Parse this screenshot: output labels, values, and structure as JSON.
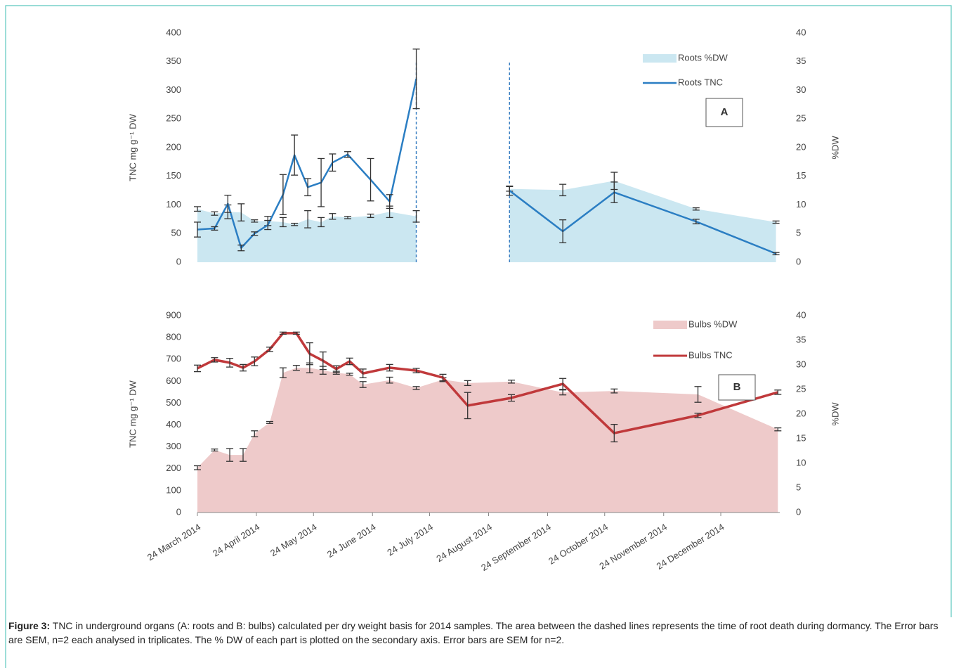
{
  "chart_data": [
    {
      "type": "line",
      "label": "A",
      "ylabel": "TNC mg g⁻¹ DW",
      "y2label": "%DW",
      "xlim": [
        "2014-03-24",
        "2015-01-24"
      ],
      "ylim": [
        0,
        400
      ],
      "yticks": [
        0,
        50,
        100,
        150,
        200,
        250,
        300,
        350,
        400
      ],
      "y2lim": [
        0,
        40
      ],
      "y2ticks": [
        0,
        5,
        10,
        15,
        20,
        25,
        30,
        35,
        40
      ],
      "dashed_lines": [
        "2014-07-17",
        "2014-09-04"
      ],
      "legend": "top-right",
      "x": [
        "2014-03-24",
        "2014-04-02",
        "2014-04-09",
        "2014-04-16",
        "2014-04-23",
        "2014-04-30",
        "2014-05-08",
        "2014-05-14",
        "2014-05-21",
        "2014-05-28",
        "2014-06-03",
        "2014-06-11",
        "2014-06-23",
        "2014-07-03",
        "2014-07-17",
        "2014-09-04",
        "2014-10-02",
        "2014-10-29",
        "2014-12-11",
        "2015-01-22"
      ],
      "series": [
        {
          "name": "Roots %DW",
          "type": "area",
          "axis": "y2",
          "color": "#cbe7f1",
          "values": [
            9.3,
            8.5,
            8.8,
            8.7,
            7.2,
            7.2,
            7.0,
            6.6,
            7.5,
            7.0,
            8.0,
            7.8,
            8.1,
            8.8,
            8.0,
            12.8,
            12.6,
            14.2,
            9.3,
            7.0
          ],
          "errors": [
            0.4,
            0.3,
            1.2,
            1.5,
            0.2,
            0.8,
            0.8,
            0.2,
            1.5,
            0.8,
            0.5,
            0.2,
            0.3,
            1.0,
            1.0,
            0.4,
            1.0,
            1.5,
            0.2,
            0.2
          ]
        },
        {
          "name": "Roots TNC",
          "type": "line",
          "color": "#2b7ec3",
          "values": [
            57,
            59,
            102,
            25,
            50,
            65,
            118,
            187,
            131,
            139,
            174,
            188,
            144,
            106,
            320,
            125,
            54,
            122,
            71,
            15
          ],
          "errors": [
            13,
            3,
            15,
            5,
            3,
            8,
            35,
            35,
            15,
            42,
            15,
            5,
            37,
            12,
            52,
            8,
            20,
            18,
            4,
            2
          ]
        }
      ]
    },
    {
      "type": "line",
      "label": "B",
      "ylabel": "TNC mg g⁻¹ DW",
      "y2label": "%DW",
      "xlim": [
        "2014-03-24",
        "2015-01-24"
      ],
      "ylim": [
        0,
        900
      ],
      "yticks": [
        0,
        100,
        200,
        300,
        400,
        500,
        600,
        700,
        800,
        900
      ],
      "y2lim": [
        0,
        40
      ],
      "y2ticks": [
        0,
        5,
        10,
        15,
        20,
        25,
        30,
        35,
        40
      ],
      "legend": "top-right",
      "xticks": [
        {
          "value": "2014-03-24",
          "label": "24 March 2014"
        },
        {
          "value": "2014-04-24",
          "label": "24 April 2014"
        },
        {
          "value": "2014-05-24",
          "label": "24 May 2014"
        },
        {
          "value": "2014-06-24",
          "label": "24 June 2014"
        },
        {
          "value": "2014-07-24",
          "label": "24 July 2014"
        },
        {
          "value": "2014-08-24",
          "label": "24 August 2014"
        },
        {
          "value": "2014-09-24",
          "label": "24 September 2014"
        },
        {
          "value": "2014-10-24",
          "label": "24 October 2014"
        },
        {
          "value": "2014-11-24",
          "label": "24 November 2014"
        },
        {
          "value": "2014-12-24",
          "label": "24 December 2014"
        }
      ],
      "x": [
        "2014-03-24",
        "2014-04-02",
        "2014-04-10",
        "2014-04-17",
        "2014-04-23",
        "2014-05-01",
        "2014-05-08",
        "2014-05-15",
        "2014-05-22",
        "2014-05-29",
        "2014-06-05",
        "2014-06-12",
        "2014-06-19",
        "2014-07-03",
        "2014-07-17",
        "2014-07-31",
        "2014-08-13",
        "2014-09-05",
        "2014-10-02",
        "2014-10-29",
        "2014-12-12",
        "2015-01-23"
      ],
      "series": [
        {
          "name": "Bulbs %DW",
          "type": "area",
          "axis": "y2",
          "color": "#eecaca",
          "values": [
            9.1,
            12.7,
            11.7,
            11.7,
            16.0,
            18.3,
            28.4,
            29.4,
            29.4,
            28.9,
            28.4,
            28.1,
            26.0,
            26.9,
            25.3,
            27.0,
            26.3,
            26.6,
            24.4,
            24.7,
            24.0,
            16.9
          ],
          "errors": [
            0.4,
            0.2,
            1.3,
            1.3,
            0.6,
            0.2,
            1.0,
            0.5,
            1.0,
            0.8,
            0.3,
            0.2,
            0.6,
            0.6,
            0.3,
            0.4,
            0.5,
            0.3,
            0.5,
            0.4,
            1.6,
            0.3
          ]
        },
        {
          "name": "Bulbs TNC",
          "type": "line",
          "color": "#c0393b",
          "values": [
            659,
            698,
            685,
            662,
            691,
            746,
            820,
            820,
            726,
            694,
            656,
            691,
            636,
            662,
            649,
            617,
            489,
            524,
            588,
            363,
            444,
            550
          ],
          "errors": [
            15,
            10,
            20,
            15,
            20,
            10,
            5,
            5,
            50,
            40,
            15,
            15,
            20,
            15,
            10,
            15,
            60,
            15,
            25,
            40,
            10,
            10
          ]
        }
      ]
    }
  ],
  "caption": {
    "label": "Figure 3:",
    "text": " TNC in underground organs (A: roots and B: bulbs) calculated per dry weight basis for 2014 samples. The area between the dashed lines represents the time of root death during dormancy. The Error bars are SEM, n=2 each analysed in triplicates. The % DW of each part is plotted on the secondary axis. Error bars are SEM for n=2."
  }
}
